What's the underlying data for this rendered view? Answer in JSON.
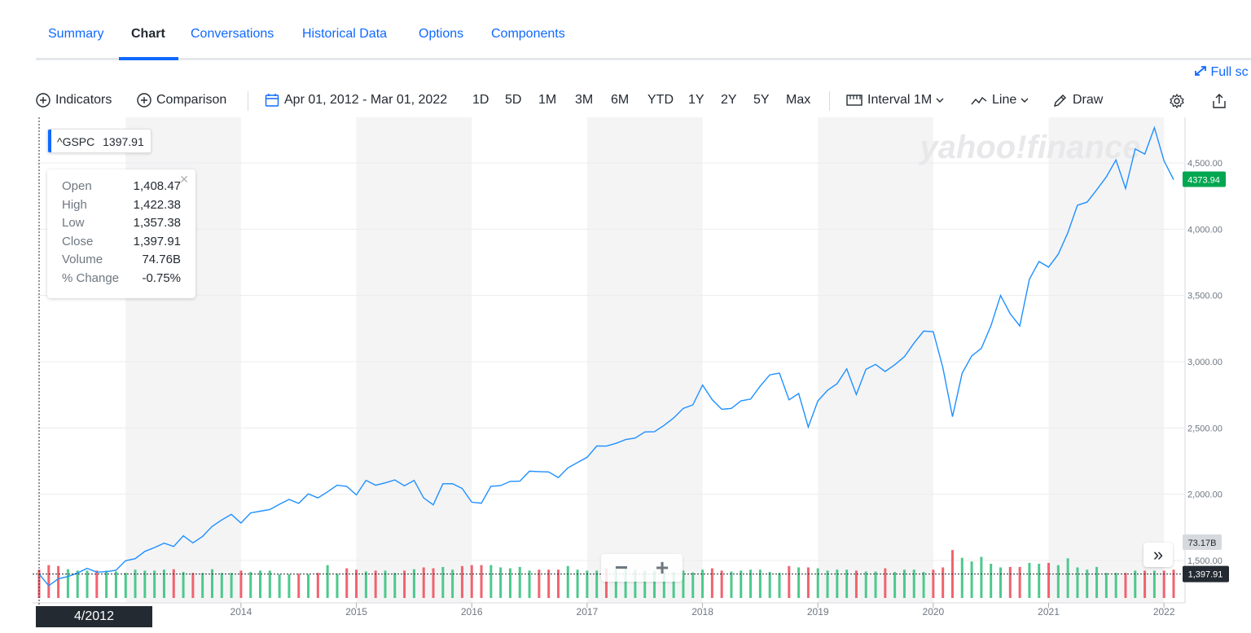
{
  "tabs": {
    "items": [
      {
        "label": "Summary",
        "active": false
      },
      {
        "label": "Chart",
        "active": true
      },
      {
        "label": "Conversations",
        "active": false
      },
      {
        "label": "Historical Data",
        "active": false
      },
      {
        "label": "Options",
        "active": false
      },
      {
        "label": "Components",
        "active": false
      }
    ]
  },
  "fullscreen_label": "Full sc",
  "toolbar": {
    "indicators": "Indicators",
    "comparison": "Comparison",
    "date_range": "Apr 01, 2012 - Mar 01, 2022",
    "ranges": [
      "1D",
      "5D",
      "1M",
      "3M",
      "6M",
      "YTD",
      "1Y",
      "2Y",
      "5Y",
      "Max"
    ],
    "interval_label": "Interval",
    "interval_value": "1M",
    "chart_type": "Line",
    "draw": "Draw"
  },
  "symbol": {
    "ticker": "^GSPC",
    "value": "1397.91"
  },
  "ohlc": [
    {
      "label": "Open",
      "value": "1,408.47"
    },
    {
      "label": "High",
      "value": "1,422.38"
    },
    {
      "label": "Low",
      "value": "1,357.38"
    },
    {
      "label": "Close",
      "value": "1,397.91"
    },
    {
      "label": "Volume",
      "value": "74.76B"
    },
    {
      "label": "% Change",
      "value": "-0.75%"
    }
  ],
  "watermark": "yahoo!finance",
  "crosshair_date": "4/2012",
  "last_price_label": "4373.94",
  "volume_label": "73.17B",
  "crosshair_price_label": "1,397.91",
  "colors": {
    "line": "#1e90ff",
    "up": "#4cc98c",
    "down": "#f0636f",
    "last_price": "#00a650",
    "accent": "#0f69ff"
  },
  "chart_data": {
    "type": "line",
    "title": "",
    "y_ticks": [
      1500,
      2000,
      2500,
      3000,
      3500,
      4000,
      4500
    ],
    "y_tick_labels": [
      "1,500.00",
      "2,000.00",
      "2,500.00",
      "3,000.00",
      "3,500.00",
      "4,000.00",
      "4,500.00"
    ],
    "ylim": [
      1300,
      4900
    ],
    "x_tick_labels": [
      "2014",
      "2015",
      "2016",
      "2017",
      "2018",
      "2019",
      "2020",
      "2021",
      "2022"
    ],
    "x_start": "2012-04",
    "x_end": "2022-03",
    "grid": true,
    "series": [
      {
        "name": "^GSPC",
        "values": [
          1398,
          1310,
          1362,
          1379,
          1406,
          1441,
          1412,
          1416,
          1426,
          1498,
          1514,
          1569,
          1598,
          1631,
          1606,
          1686,
          1633,
          1682,
          1757,
          1806,
          1848,
          1783,
          1859,
          1872,
          1884,
          1924,
          1961,
          1931,
          2003,
          1972,
          2018,
          2068,
          2059,
          1995,
          2105,
          2068,
          2086,
          2108,
          2064,
          2104,
          1972,
          1920,
          2079,
          2080,
          2044,
          1940,
          1932,
          2060,
          2065,
          2097,
          2099,
          2174,
          2171,
          2168,
          2126,
          2199,
          2239,
          2279,
          2364,
          2363,
          2384,
          2412,
          2424,
          2470,
          2472,
          2519,
          2575,
          2648,
          2674,
          2824,
          2714,
          2641,
          2648,
          2705,
          2718,
          2816,
          2901,
          2914,
          2712,
          2760,
          2507,
          2704,
          2784,
          2834,
          2946,
          2752,
          2942,
          2980,
          2926,
          2977,
          3038,
          3141,
          3231,
          3226,
          2954,
          2585,
          2912,
          3044,
          3100,
          3271,
          3500,
          3363,
          3270,
          3622,
          3756,
          3714,
          3811,
          3973,
          4181,
          4204,
          4298,
          4395,
          4523,
          4307,
          4605,
          4567,
          4766,
          4516,
          4374
        ]
      }
    ],
    "volume_up": [
      null,
      false,
      false,
      true,
      true,
      true,
      false,
      true,
      true,
      true,
      true,
      true,
      true,
      true,
      false,
      true,
      false,
      true,
      true,
      true,
      true,
      false,
      true,
      true,
      true,
      true,
      true,
      false,
      true,
      false,
      true,
      true,
      false,
      false,
      true,
      false,
      true,
      true,
      false,
      true,
      false,
      false,
      true,
      true,
      false,
      false,
      false,
      true,
      true,
      true,
      true,
      true,
      false,
      false,
      false,
      true,
      true,
      true,
      true,
      false,
      true,
      true,
      true,
      true,
      true,
      true,
      true,
      true,
      true,
      true,
      false,
      false,
      true,
      true,
      true,
      true,
      true,
      true,
      false,
      true,
      false,
      true,
      true,
      true,
      true,
      false,
      true,
      true,
      false,
      true,
      true,
      true,
      true,
      false,
      false,
      false,
      true,
      true,
      true,
      true,
      true,
      false,
      false,
      true,
      true,
      false,
      true,
      true,
      true,
      true,
      true,
      true,
      true,
      false,
      true,
      false,
      true,
      false,
      false
    ],
    "volume_heights": [
      0.62,
      0.72,
      0.7,
      0.63,
      0.6,
      0.6,
      0.6,
      0.6,
      0.58,
      0.55,
      0.62,
      0.6,
      0.6,
      0.62,
      0.63,
      0.57,
      0.55,
      0.55,
      0.63,
      0.55,
      0.55,
      0.6,
      0.57,
      0.6,
      0.6,
      0.52,
      0.52,
      0.53,
      0.52,
      0.55,
      0.72,
      0.53,
      0.65,
      0.62,
      0.58,
      0.6,
      0.6,
      0.55,
      0.6,
      0.63,
      0.67,
      0.65,
      0.68,
      0.62,
      0.7,
      0.72,
      0.72,
      0.72,
      0.67,
      0.65,
      0.68,
      0.6,
      0.62,
      0.62,
      0.62,
      0.7,
      0.62,
      0.6,
      0.6,
      0.65,
      0.63,
      0.67,
      0.62,
      0.6,
      0.6,
      0.58,
      0.57,
      0.6,
      0.56,
      0.62,
      0.65,
      0.6,
      0.58,
      0.6,
      0.62,
      0.62,
      0.57,
      0.55,
      0.7,
      0.67,
      0.67,
      0.65,
      0.6,
      0.62,
      0.62,
      0.6,
      0.58,
      0.58,
      0.65,
      0.57,
      0.62,
      0.62,
      0.57,
      0.62,
      0.67,
      1.05,
      0.88,
      0.8,
      0.9,
      0.75,
      0.67,
      0.68,
      0.68,
      0.77,
      0.75,
      0.77,
      0.72,
      0.87,
      0.67,
      0.62,
      0.68,
      0.55,
      0.55,
      0.55,
      0.6,
      0.6,
      0.6,
      0.6,
      0.62
    ]
  }
}
